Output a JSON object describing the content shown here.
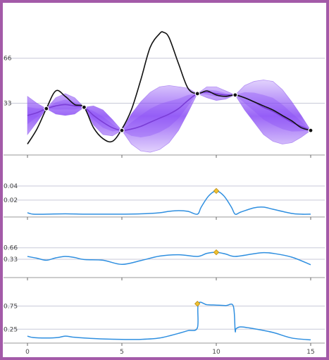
{
  "chart_data": [
    {
      "type": "line",
      "panel": "gaussian-process-fit",
      "xlim": [
        0,
        15
      ],
      "ylim": [
        -5,
        88
      ],
      "yticks": [
        33,
        66
      ],
      "ytick_labels": [
        "33",
        "66"
      ],
      "truth": {
        "x": [
          0,
          0.5,
          1,
          1.5,
          2,
          2.5,
          3,
          3.5,
          4,
          4.5,
          5,
          5.5,
          6,
          6.5,
          7,
          7.2,
          7.5,
          8,
          8.5,
          9,
          9.5,
          10,
          10.5,
          11,
          11.5,
          12,
          12.5,
          13,
          13.5,
          14,
          14.5,
          15
        ],
        "y": [
          3,
          14,
          29,
          42,
          38,
          32,
          30,
          15,
          7,
          5,
          14,
          28,
          50,
          74,
          84,
          85,
          81,
          62,
          44,
          40,
          42,
          39,
          38,
          39,
          37,
          34,
          31,
          28,
          24,
          20,
          15,
          13
        ]
      },
      "mean": {
        "x": [
          0,
          0.5,
          1,
          1.5,
          2,
          2.5,
          3,
          3.5,
          4,
          4.5,
          5,
          5.5,
          6,
          6.5,
          7,
          7.5,
          8,
          8.5,
          9,
          9.5,
          10,
          10.5,
          11,
          11.5,
          12,
          12.5,
          13,
          13.5,
          14,
          14.5,
          15
        ],
        "y": [
          24,
          26,
          29,
          31,
          32,
          31,
          30,
          24,
          19,
          15,
          13,
          14,
          16,
          19,
          22,
          25,
          29,
          35,
          40,
          41,
          40,
          39,
          39,
          37,
          34,
          30,
          27,
          23,
          19,
          16,
          13
        ]
      },
      "band_halfwidth": {
        "x": [
          0,
          0.5,
          1,
          1.5,
          2,
          2.5,
          3,
          3.5,
          4,
          4.5,
          5,
          5.5,
          6,
          6.5,
          7,
          7.5,
          8,
          8.5,
          9,
          9.5,
          10,
          10.5,
          11,
          11.5,
          12,
          12.5,
          13,
          13.5,
          14,
          14.5,
          15
        ],
        "y": [
          14,
          7,
          0,
          6,
          8,
          6,
          0,
          7,
          9,
          6,
          0,
          11,
          18,
          22,
          23,
          21,
          16,
          9,
          0,
          4,
          5,
          3,
          0,
          9,
          15,
          20,
          22,
          20,
          15,
          8,
          0
        ]
      },
      "observations": {
        "x": [
          1,
          3,
          5,
          9,
          11,
          15
        ],
        "y": [
          29,
          30,
          13,
          40,
          39,
          13
        ]
      },
      "colors": {
        "truth": "#111111",
        "mean": "#7a3dd6",
        "band": "#8a4cf5",
        "points": "#111111"
      }
    },
    {
      "type": "line",
      "panel": "acquisition-1",
      "xlim": [
        0,
        15
      ],
      "ylim": [
        -0.004,
        0.056
      ],
      "yticks": [
        0.02,
        0.04
      ],
      "ytick_labels": [
        "0.02",
        "0.04"
      ],
      "x": [
        0,
        0.3,
        1,
        2,
        3,
        4,
        5,
        6,
        7,
        7.5,
        8,
        8.5,
        9,
        9.2,
        9.6,
        10,
        10.4,
        10.8,
        11,
        11.3,
        12,
        12.5,
        13,
        14,
        14.5,
        15
      ],
      "y": [
        0.002,
        0,
        0,
        0.0005,
        0,
        0,
        0,
        0.0005,
        0.002,
        0.004,
        0.005,
        0.004,
        0,
        0.01,
        0.026,
        0.033,
        0.026,
        0.01,
        0,
        0.003,
        0.009,
        0.01,
        0.007,
        0.001,
        0,
        0
      ],
      "marker": {
        "x": 10,
        "y": 0.033
      },
      "colors": {
        "line": "#2f8fe0",
        "marker": "#f0c232"
      }
    },
    {
      "type": "line",
      "panel": "acquisition-2",
      "xlim": [
        0,
        15
      ],
      "ylim": [
        -0.2,
        0.98
      ],
      "yticks": [
        0.33,
        0.66
      ],
      "ytick_labels": [
        "0.33",
        "0.66"
      ],
      "x": [
        0,
        0.5,
        1,
        1.5,
        2,
        2.5,
        3,
        4,
        5,
        6,
        7,
        8,
        9,
        9.5,
        10,
        10.5,
        11,
        12,
        12.5,
        13,
        14,
        15
      ],
      "y": [
        0.41,
        0.36,
        0.3,
        0.37,
        0.41,
        0.38,
        0.32,
        0.3,
        0.18,
        0.29,
        0.42,
        0.46,
        0.41,
        0.5,
        0.53,
        0.48,
        0.41,
        0.49,
        0.52,
        0.5,
        0.39,
        0.17
      ],
      "marker": {
        "x": 10,
        "y": 0.53
      },
      "colors": {
        "line": "#2f8fe0",
        "marker": "#f0c232"
      }
    },
    {
      "type": "line",
      "panel": "acquisition-3",
      "xlim": [
        0,
        15
      ],
      "xticks": [
        0,
        5,
        10,
        15
      ],
      "xtick_labels": [
        "0",
        "5",
        "10",
        "15"
      ],
      "ylim": [
        -0.05,
        1.0
      ],
      "yticks": [
        0.25,
        0.75
      ],
      "ytick_labels": [
        "0.25",
        "0.75"
      ],
      "x": [
        0,
        0.3,
        1,
        1.6,
        2,
        2.4,
        3,
        4,
        5,
        6,
        7,
        8,
        8.5,
        9,
        9.05,
        9.5,
        10,
        10.5,
        10.9,
        11.0,
        11.05,
        11.3,
        12,
        13,
        14,
        15
      ],
      "y": [
        0.1,
        0.07,
        0.06,
        0.07,
        0.1,
        0.08,
        0.06,
        0.04,
        0.03,
        0.03,
        0.06,
        0.16,
        0.22,
        0.28,
        0.8,
        0.78,
        0.77,
        0.76,
        0.75,
        0.22,
        0.26,
        0.3,
        0.26,
        0.18,
        0.06,
        0.02
      ],
      "marker": {
        "x": 9,
        "y": 0.8
      },
      "colors": {
        "line": "#2f8fe0",
        "marker": "#f0c232"
      }
    }
  ]
}
